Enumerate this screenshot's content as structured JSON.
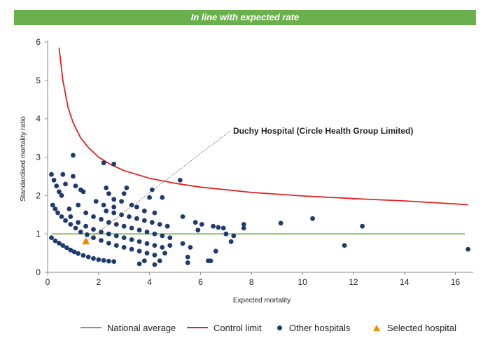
{
  "banner": {
    "text": "In line with expected rate"
  },
  "colors": {
    "banner": "#6ab04c",
    "national_average": "#6ab04c",
    "control_limit": "#e32222",
    "other_hospitals": "#1f3a6e",
    "selected_hospital": "#f08c00"
  },
  "annotation": {
    "text": "Duchy Hospital (Circle Health Group Limited)"
  },
  "legend": {
    "national_average": "National average",
    "control_limit": "Control limit",
    "other_hospitals": "Other hospitals",
    "selected_hospital": "Selected hospital"
  },
  "chart_data": {
    "type": "scatter",
    "title": "",
    "xlabel": "Expected mortality",
    "ylabel": "Standardised mortality ratio",
    "xlim": [
      0,
      16.7
    ],
    "ylim": [
      0,
      6
    ],
    "x_ticks": [
      0,
      2,
      4,
      6,
      8,
      10,
      12,
      14,
      16
    ],
    "y_ticks": [
      0,
      1,
      2,
      3,
      4,
      5,
      6
    ],
    "national_average": 1,
    "control_limit": {
      "x": [
        0.45,
        0.6,
        0.8,
        1.0,
        1.3,
        1.6,
        2.0,
        2.5,
        3.0,
        4.0,
        5.0,
        6.0,
        8.0,
        10.0,
        12.0,
        14.0,
        16.5
      ],
      "y": [
        5.85,
        5.0,
        4.3,
        3.9,
        3.5,
        3.25,
        3.0,
        2.8,
        2.65,
        2.45,
        2.32,
        2.22,
        2.08,
        1.99,
        1.92,
        1.86,
        1.76
      ]
    },
    "selected_hospital": {
      "x": 1.5,
      "y": 0.8
    },
    "other_hospitals": [
      [
        0.15,
        2.55
      ],
      [
        0.25,
        2.4
      ],
      [
        0.35,
        2.25
      ],
      [
        0.45,
        2.1
      ],
      [
        0.55,
        2.0
      ],
      [
        0.6,
        2.55
      ],
      [
        0.7,
        2.3
      ],
      [
        0.85,
        1.65
      ],
      [
        1.0,
        3.05
      ],
      [
        1.0,
        2.5
      ],
      [
        1.1,
        2.25
      ],
      [
        1.3,
        2.15
      ],
      [
        1.4,
        2.1
      ],
      [
        2.2,
        2.85
      ],
      [
        2.6,
        2.82
      ],
      [
        2.3,
        2.2
      ],
      [
        2.4,
        2.05
      ],
      [
        3.1,
        2.2
      ],
      [
        3.0,
        2.05
      ],
      [
        4.1,
        2.15
      ],
      [
        4.0,
        1.95
      ],
      [
        4.5,
        1.95
      ],
      [
        2.6,
        1.9
      ],
      [
        2.9,
        1.85
      ],
      [
        3.3,
        1.75
      ],
      [
        3.5,
        1.7
      ],
      [
        5.2,
        2.4
      ],
      [
        1.2,
        1.75
      ],
      [
        1.9,
        1.85
      ],
      [
        2.2,
        1.75
      ],
      [
        2.6,
        1.7
      ],
      [
        3.8,
        1.6
      ],
      [
        4.2,
        1.55
      ],
      [
        5.3,
        1.45
      ],
      [
        5.8,
        1.3
      ],
      [
        5.9,
        1.1
      ],
      [
        6.05,
        1.25
      ],
      [
        6.5,
        1.2
      ],
      [
        6.7,
        1.17
      ],
      [
        6.9,
        1.15
      ],
      [
        7.0,
        1.0
      ],
      [
        7.2,
        0.8
      ],
      [
        7.3,
        0.95
      ],
      [
        7.7,
        1.25
      ],
      [
        7.7,
        1.15
      ],
      [
        9.15,
        1.28
      ],
      [
        10.4,
        1.4
      ],
      [
        11.65,
        0.7
      ],
      [
        12.35,
        1.2
      ],
      [
        16.5,
        0.6
      ],
      [
        6.3,
        0.3
      ],
      [
        6.6,
        0.55
      ],
      [
        6.4,
        0.3
      ],
      [
        5.6,
        0.65
      ],
      [
        5.5,
        0.4
      ],
      [
        5.3,
        0.75
      ],
      [
        5.5,
        0.25
      ],
      [
        4.8,
        0.7
      ],
      [
        4.6,
        0.5
      ],
      [
        4.4,
        0.3
      ],
      [
        4.2,
        0.2
      ],
      [
        3.8,
        0.3
      ],
      [
        3.6,
        0.22
      ],
      [
        0.2,
        1.75
      ],
      [
        0.3,
        1.65
      ],
      [
        0.4,
        1.55
      ],
      [
        0.55,
        1.45
      ],
      [
        0.7,
        1.35
      ],
      [
        0.9,
        1.25
      ],
      [
        1.1,
        1.15
      ],
      [
        1.3,
        1.05
      ],
      [
        1.55,
        0.98
      ],
      [
        1.8,
        0.9
      ],
      [
        2.1,
        0.83
      ],
      [
        2.4,
        0.76
      ],
      [
        2.7,
        0.7
      ],
      [
        3.0,
        0.65
      ],
      [
        3.3,
        0.6
      ],
      [
        3.6,
        0.55
      ],
      [
        3.9,
        0.5
      ],
      [
        4.2,
        0.45
      ],
      [
        0.9,
        1.45
      ],
      [
        1.2,
        1.3
      ],
      [
        1.5,
        1.2
      ],
      [
        1.8,
        1.12
      ],
      [
        2.1,
        1.05
      ],
      [
        2.4,
        1.0
      ],
      [
        2.7,
        0.95
      ],
      [
        3.0,
        0.9
      ],
      [
        3.3,
        0.85
      ],
      [
        3.6,
        0.8
      ],
      [
        3.9,
        0.75
      ],
      [
        4.2,
        0.7
      ],
      [
        4.5,
        0.65
      ],
      [
        1.5,
        1.55
      ],
      [
        1.8,
        1.45
      ],
      [
        2.1,
        1.38
      ],
      [
        2.4,
        1.3
      ],
      [
        2.7,
        1.25
      ],
      [
        3.0,
        1.2
      ],
      [
        3.3,
        1.15
      ],
      [
        3.6,
        1.1
      ],
      [
        3.9,
        1.05
      ],
      [
        4.2,
        1.0
      ],
      [
        4.5,
        0.95
      ],
      [
        4.8,
        0.9
      ],
      [
        2.3,
        1.6
      ],
      [
        2.6,
        1.55
      ],
      [
        2.9,
        1.5
      ],
      [
        3.2,
        1.45
      ],
      [
        3.5,
        1.4
      ],
      [
        3.8,
        1.35
      ],
      [
        4.1,
        1.3
      ],
      [
        4.4,
        1.25
      ],
      [
        4.7,
        1.2
      ],
      [
        0.15,
        0.9
      ],
      [
        0.3,
        0.82
      ],
      [
        0.45,
        0.76
      ],
      [
        0.6,
        0.7
      ],
      [
        0.75,
        0.64
      ],
      [
        0.9,
        0.58
      ],
      [
        1.05,
        0.53
      ],
      [
        1.2,
        0.49
      ],
      [
        1.4,
        0.44
      ],
      [
        1.6,
        0.4
      ],
      [
        1.8,
        0.36
      ],
      [
        2.0,
        0.33
      ],
      [
        2.2,
        0.31
      ],
      [
        2.4,
        0.29
      ],
      [
        2.6,
        0.28
      ]
    ]
  }
}
